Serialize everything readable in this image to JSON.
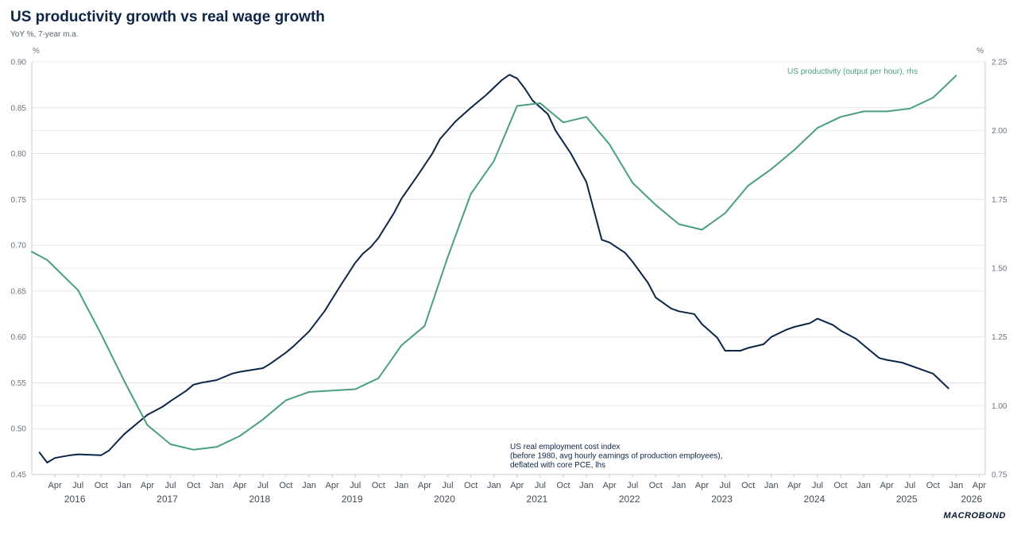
{
  "header": {
    "title": "US productivity growth vs real wage growth",
    "subtitle": "YoY %, 7-year m.a."
  },
  "logo_text": "MACROBOND",
  "chart_data": {
    "type": "line",
    "title": "US productivity growth vs real wage growth",
    "subtitle": "YoY %, 7-year m.a.",
    "x_start": "2016-01",
    "x_end": "2026-04",
    "x_month_ticks": [
      "Apr",
      "Jul",
      "Oct",
      "Jan",
      "Apr",
      "Jul",
      "Oct",
      "Jan",
      "Apr",
      "Jul",
      "Oct",
      "Jan",
      "Apr",
      "Jul",
      "Oct",
      "Jan",
      "Apr",
      "Jul",
      "Oct",
      "Jan",
      "Apr",
      "Jul",
      "Oct",
      "Jan",
      "Apr",
      "Jul",
      "Oct",
      "Jan",
      "Apr",
      "Jul",
      "Oct",
      "Jan",
      "Apr",
      "Jul",
      "Oct",
      "Jan",
      "Apr",
      "Jul",
      "Oct",
      "Jan",
      "Apr"
    ],
    "x_year_labels": [
      "2016",
      "2017",
      "2018",
      "2019",
      "2020",
      "2021",
      "2022",
      "2023",
      "2024",
      "2025",
      "2026"
    ],
    "y_left": {
      "unit": "%",
      "ylim": [
        0.45,
        0.9
      ],
      "ticks": [
        "0.45",
        "0.50",
        "0.55",
        "0.60",
        "0.65",
        "0.70",
        "0.75",
        "0.80",
        "0.85",
        "0.90"
      ]
    },
    "y_right": {
      "unit": "%",
      "ylim": [
        0.75,
        2.25
      ],
      "ticks": [
        "0.75",
        "1.00",
        "1.25",
        "1.50",
        "1.75",
        "2.00",
        "2.25"
      ]
    },
    "grid": "horizontal",
    "series": [
      {
        "name": "US real employment cost index",
        "label_lines": [
          "US real employment cost index",
          "(before 1980, avg hourly earnings of production employees),",
          "deflated with core PCE, lhs"
        ],
        "axis": "left",
        "color": "#0d2547",
        "points": [
          [
            "2016-02",
            0.474
          ],
          [
            "2016-03",
            0.463
          ],
          [
            "2016-04",
            0.468
          ],
          [
            "2016-06",
            0.471
          ],
          [
            "2016-07",
            0.472
          ],
          [
            "2016-10",
            0.471
          ],
          [
            "2016-11",
            0.476
          ],
          [
            "2017-01",
            0.494
          ],
          [
            "2017-03",
            0.508
          ],
          [
            "2017-04",
            0.515
          ],
          [
            "2017-06",
            0.524
          ],
          [
            "2017-07",
            0.53
          ],
          [
            "2017-09",
            0.541
          ],
          [
            "2017-10",
            0.548
          ],
          [
            "2017-11",
            0.55
          ],
          [
            "2018-01",
            0.553
          ],
          [
            "2018-03",
            0.56
          ],
          [
            "2018-04",
            0.562
          ],
          [
            "2018-07",
            0.566
          ],
          [
            "2018-08",
            0.571
          ],
          [
            "2018-10",
            0.583
          ],
          [
            "2018-11",
            0.59
          ],
          [
            "2019-01",
            0.606
          ],
          [
            "2019-03",
            0.628
          ],
          [
            "2019-05",
            0.655
          ],
          [
            "2019-07",
            0.681
          ],
          [
            "2019-08",
            0.691
          ],
          [
            "2019-09",
            0.698
          ],
          [
            "2019-10",
            0.708
          ],
          [
            "2019-12",
            0.735
          ],
          [
            "2020-01",
            0.751
          ],
          [
            "2020-03",
            0.775
          ],
          [
            "2020-05",
            0.8
          ],
          [
            "2020-06",
            0.816
          ],
          [
            "2020-08",
            0.835
          ],
          [
            "2020-10",
            0.85
          ],
          [
            "2020-12",
            0.864
          ],
          [
            "2021-02",
            0.88
          ],
          [
            "2021-03",
            0.886
          ],
          [
            "2021-04",
            0.882
          ],
          [
            "2021-05",
            0.871
          ],
          [
            "2021-06",
            0.858
          ],
          [
            "2021-08",
            0.843
          ],
          [
            "2021-09",
            0.825
          ],
          [
            "2021-11",
            0.8
          ],
          [
            "2022-01",
            0.769
          ],
          [
            "2022-03",
            0.706
          ],
          [
            "2022-04",
            0.703
          ],
          [
            "2022-06",
            0.692
          ],
          [
            "2022-07",
            0.682
          ],
          [
            "2022-09",
            0.659
          ],
          [
            "2022-10",
            0.643
          ],
          [
            "2022-12",
            0.631
          ],
          [
            "2023-01",
            0.628
          ],
          [
            "2023-03",
            0.625
          ],
          [
            "2023-04",
            0.614
          ],
          [
            "2023-06",
            0.599
          ],
          [
            "2023-07",
            0.585
          ],
          [
            "2023-09",
            0.585
          ],
          [
            "2023-10",
            0.588
          ],
          [
            "2023-12",
            0.592
          ],
          [
            "2024-01",
            0.6
          ],
          [
            "2024-03",
            0.608
          ],
          [
            "2024-04",
            0.611
          ],
          [
            "2024-06",
            0.615
          ],
          [
            "2024-07",
            0.62
          ],
          [
            "2024-09",
            0.613
          ],
          [
            "2024-10",
            0.607
          ],
          [
            "2024-12",
            0.598
          ],
          [
            "2025-01",
            0.591
          ],
          [
            "2025-03",
            0.577
          ],
          [
            "2025-04",
            0.575
          ],
          [
            "2025-06",
            0.572
          ],
          [
            "2025-07",
            0.569
          ],
          [
            "2025-09",
            0.563
          ],
          [
            "2025-10",
            0.56
          ],
          [
            "2025-12",
            0.544
          ]
        ]
      },
      {
        "name": "US productivity (output per hour), rhs",
        "label_lines": [
          "US productivity (output per hour), rhs"
        ],
        "axis": "right",
        "color": "#4aa07e",
        "points": [
          [
            "2016-01",
            1.56
          ],
          [
            "2016-03",
            1.53
          ],
          [
            "2016-07",
            1.42
          ],
          [
            "2016-10",
            1.26
          ],
          [
            "2017-01",
            1.09
          ],
          [
            "2017-04",
            0.93
          ],
          [
            "2017-07",
            0.86
          ],
          [
            "2017-10",
            0.84
          ],
          [
            "2018-01",
            0.85
          ],
          [
            "2018-04",
            0.89
          ],
          [
            "2018-07",
            0.95
          ],
          [
            "2018-10",
            1.02
          ],
          [
            "2019-01",
            1.05
          ],
          [
            "2019-04",
            1.055
          ],
          [
            "2019-07",
            1.06
          ],
          [
            "2019-10",
            1.1
          ],
          [
            "2020-01",
            1.22
          ],
          [
            "2020-04",
            1.29
          ],
          [
            "2020-07",
            1.54
          ],
          [
            "2020-10",
            1.77
          ],
          [
            "2021-01",
            1.89
          ],
          [
            "2021-04",
            2.09
          ],
          [
            "2021-07",
            2.1
          ],
          [
            "2021-10",
            2.03
          ],
          [
            "2022-01",
            2.05
          ],
          [
            "2022-04",
            1.95
          ],
          [
            "2022-07",
            1.81
          ],
          [
            "2022-10",
            1.73
          ],
          [
            "2023-01",
            1.66
          ],
          [
            "2023-04",
            1.64
          ],
          [
            "2023-07",
            1.7
          ],
          [
            "2023-10",
            1.8
          ],
          [
            "2024-01",
            1.86
          ],
          [
            "2024-04",
            1.93
          ],
          [
            "2024-07",
            2.01
          ],
          [
            "2024-10",
            2.05
          ],
          [
            "2025-01",
            2.07
          ],
          [
            "2025-04",
            2.07
          ],
          [
            "2025-07",
            2.08
          ],
          [
            "2025-10",
            2.12
          ],
          [
            "2026-01",
            2.2
          ]
        ]
      }
    ]
  }
}
